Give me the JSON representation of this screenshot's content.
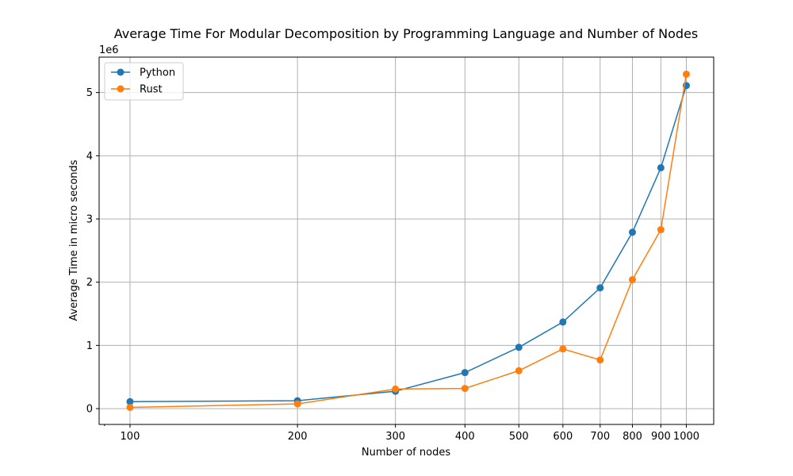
{
  "chart_data": {
    "type": "line",
    "title": "Average Time For Modular Decomposition by Programming Language and Number of Nodes",
    "xlabel": "Number of nodes",
    "ylabel": "Average Time in micro seconds",
    "y_offset_label": "1e6",
    "x_scale": "log",
    "x_tick_labels": [
      "100",
      "200",
      "300",
      "400",
      "500",
      "600",
      "700",
      "800",
      "900",
      "1000"
    ],
    "y_tick_labels": [
      "0",
      "1",
      "2",
      "3",
      "4",
      "5"
    ],
    "xlim": [
      88,
      1120
    ],
    "ylim": [
      -250000,
      5560000
    ],
    "grid": true,
    "legend_position": "top-left",
    "x": [
      100,
      200,
      300,
      400,
      500,
      600,
      700,
      800,
      900,
      1000
    ],
    "series": [
      {
        "name": "Python",
        "color": "#1f77b4",
        "values": [
          110000,
          125000,
          275000,
          570000,
          970000,
          1370000,
          1910000,
          2790000,
          3810000,
          5110000
        ]
      },
      {
        "name": "Rust",
        "color": "#ff7f0e",
        "values": [
          20000,
          75000,
          310000,
          320000,
          600000,
          945000,
          770000,
          2040000,
          2830000,
          5290000
        ]
      }
    ]
  }
}
